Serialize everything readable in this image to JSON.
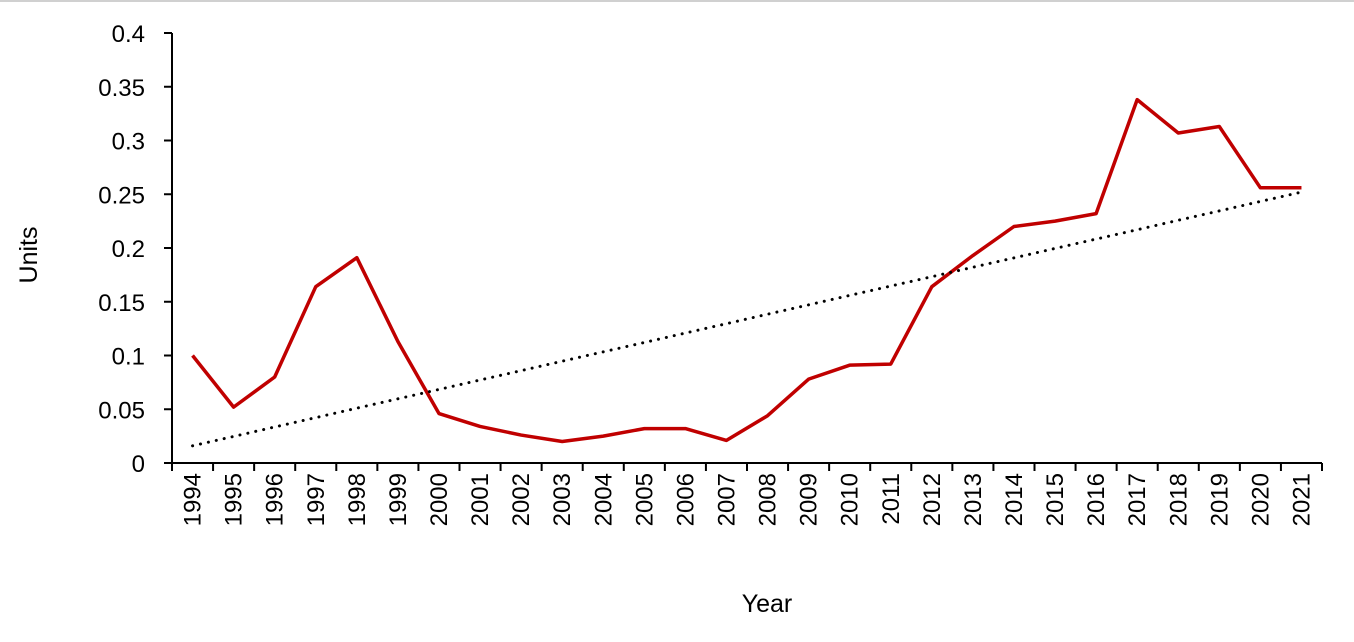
{
  "chart_data": {
    "type": "line",
    "x_label": "Year",
    "y_label": "Units",
    "categories": [
      "1994",
      "1995",
      "1996",
      "1997",
      "1998",
      "1999",
      "2000",
      "2001",
      "2002",
      "2003",
      "2004",
      "2005",
      "2006",
      "2007",
      "2008",
      "2009",
      "2010",
      "2011",
      "2012",
      "2013",
      "2014",
      "2015",
      "2016",
      "2017",
      "2018",
      "2019",
      "2020",
      "2021"
    ],
    "series": [
      {
        "color": "#c00000",
        "style": "solid",
        "values": [
          0.1,
          0.052,
          0.08,
          0.164,
          0.191,
          0.113,
          0.046,
          0.034,
          0.026,
          0.02,
          0.025,
          0.032,
          0.032,
          0.021,
          0.044,
          0.078,
          0.091,
          0.092,
          0.164,
          0.193,
          0.22,
          0.225,
          0.232,
          0.338,
          0.307,
          0.313,
          0.256,
          0.256
        ]
      },
      {
        "color": "#000000",
        "style": "dotted",
        "values": [
          0.016,
          0.0247,
          0.0335,
          0.0422,
          0.051,
          0.0597,
          0.0684,
          0.0772,
          0.0859,
          0.0947,
          0.1034,
          0.1121,
          0.1209,
          0.1296,
          0.1384,
          0.1471,
          0.1559,
          0.1646,
          0.1733,
          0.1821,
          0.1908,
          0.1996,
          0.2083,
          0.217,
          0.2258,
          0.2345,
          0.2433,
          0.252
        ]
      }
    ],
    "ylim": [
      0,
      0.4
    ],
    "yticks": [
      0,
      0.05,
      0.1,
      0.15,
      0.2,
      0.25,
      0.3,
      0.35,
      0.4
    ],
    "grid": false
  }
}
